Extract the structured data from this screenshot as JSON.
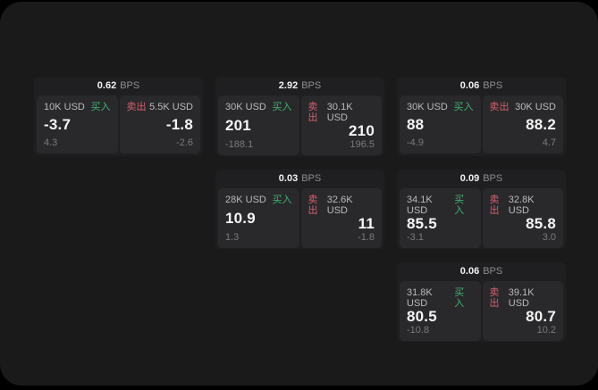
{
  "labels": {
    "bps_unit": "BPS",
    "buy": "买入",
    "sell": "卖出"
  },
  "colors": {
    "buy_accent": "#3eb370",
    "sell_accent": "#d65f6d",
    "window_bg": "#1a1a1b",
    "card_bg": "#1f1f21",
    "panel_bg": "#29292b"
  },
  "cards": [
    {
      "row": 1,
      "col": 1,
      "bps": "0.62",
      "buy": {
        "amount": "10K USD",
        "price": "-3.7",
        "delta": "4.3"
      },
      "sell": {
        "amount": "5.5K USD",
        "price": "-1.8",
        "delta": "-2.6"
      }
    },
    {
      "row": 1,
      "col": 2,
      "bps": "2.92",
      "buy": {
        "amount": "30K USD",
        "price": "201",
        "delta": "-188.1"
      },
      "sell": {
        "amount": "30.1K USD",
        "price": "210",
        "delta": "196.5"
      }
    },
    {
      "row": 1,
      "col": 3,
      "bps": "0.06",
      "buy": {
        "amount": "30K USD",
        "price": "88",
        "delta": "-4.9"
      },
      "sell": {
        "amount": "30K USD",
        "price": "88.2",
        "delta": "4.7"
      }
    },
    {
      "row": 2,
      "col": 2,
      "bps": "0.03",
      "buy": {
        "amount": "28K USD",
        "price": "10.9",
        "delta": "1.3"
      },
      "sell": {
        "amount": "32.6K USD",
        "price": "11",
        "delta": "-1.8"
      }
    },
    {
      "row": 2,
      "col": 3,
      "bps": "0.09",
      "buy": {
        "amount": "34.1K USD",
        "price": "85.5",
        "delta": "-3.1"
      },
      "sell": {
        "amount": "32.8K USD",
        "price": "85.8",
        "delta": "3.0"
      }
    },
    {
      "row": 3,
      "col": 3,
      "bps": "0.06",
      "buy": {
        "amount": "31.8K USD",
        "price": "80.5",
        "delta": "-10.8"
      },
      "sell": {
        "amount": "39.1K USD",
        "price": "80.7",
        "delta": "10.2"
      }
    }
  ]
}
